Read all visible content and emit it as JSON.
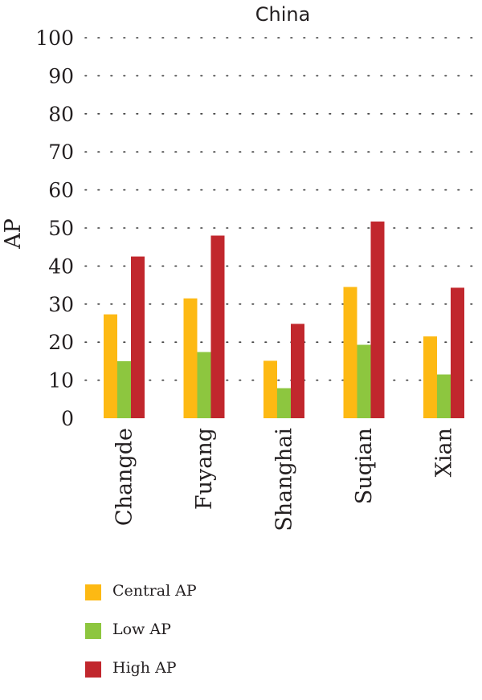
{
  "chart_data": {
    "type": "bar",
    "title": "China",
    "xlabel": "",
    "ylabel": "AP",
    "ylim": [
      0,
      100
    ],
    "yticks": [
      0,
      10,
      20,
      30,
      40,
      50,
      60,
      70,
      80,
      90,
      100
    ],
    "grid": "dotted horizontal",
    "legend_placement": "bottom-left",
    "categories": [
      "Changde",
      "Fuyang",
      "Shanghai",
      "Suqian",
      "Xian"
    ],
    "series": [
      {
        "name": "Central AP",
        "color": "#fdb913",
        "values": [
          27.3,
          31.5,
          15.1,
          34.5,
          21.5
        ]
      },
      {
        "name": "Low AP",
        "color": "#8dc63f",
        "values": [
          15.0,
          17.4,
          7.9,
          19.3,
          11.5
        ]
      },
      {
        "name": "High AP",
        "color": "#c1272d",
        "values": [
          42.5,
          48.0,
          24.8,
          51.7,
          34.3
        ]
      }
    ]
  }
}
